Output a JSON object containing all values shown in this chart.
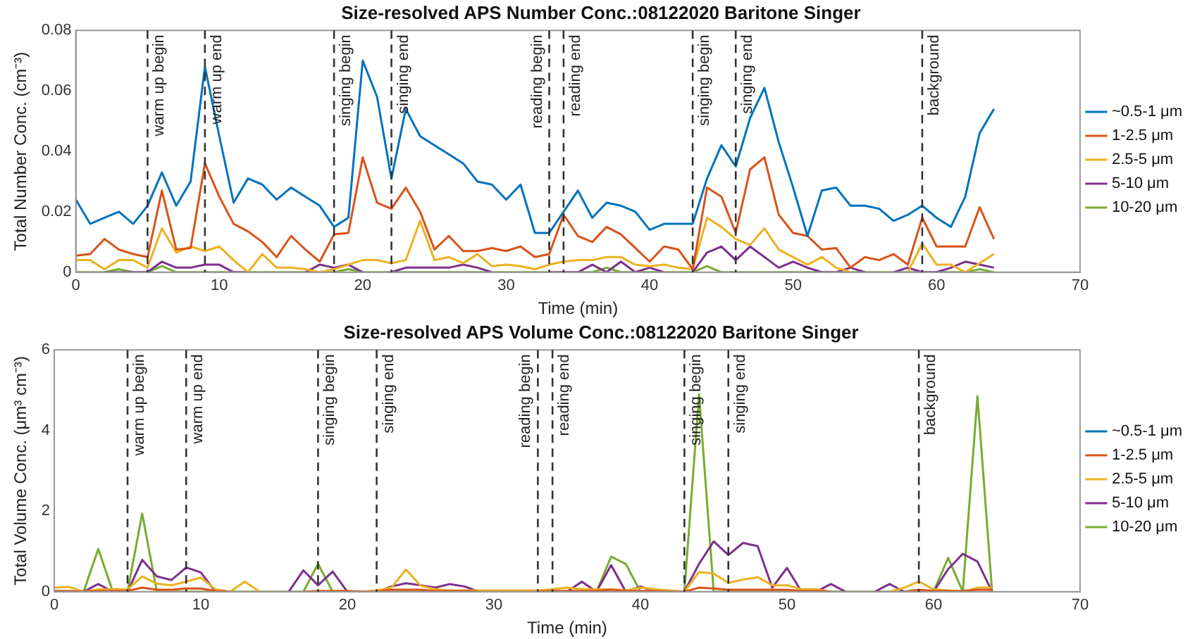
{
  "chart_data": [
    {
      "type": "line",
      "title": "Size-resolved APS Number Conc.:08122020 Baritone Singer",
      "xlabel": "Time (min)",
      "ylabel": "Total Number Conc. (cm⁻³)",
      "x": [
        0,
        1,
        2,
        3,
        4,
        5,
        6,
        7,
        8,
        9,
        10,
        11,
        12,
        13,
        14,
        15,
        16,
        17,
        18,
        19,
        20,
        21,
        22,
        23,
        24,
        25,
        26,
        27,
        28,
        29,
        30,
        31,
        32,
        33,
        34,
        35,
        36,
        37,
        38,
        39,
        40,
        41,
        42,
        43,
        44,
        45,
        46,
        47,
        48,
        49,
        50,
        51,
        52,
        53,
        54,
        55,
        56,
        57,
        58,
        59,
        60,
        61,
        62,
        63,
        64
      ],
      "xlim": [
        0,
        70
      ],
      "xticks": [
        0,
        10,
        20,
        30,
        40,
        50,
        60,
        70
      ],
      "ylim": [
        0,
        0.08
      ],
      "yticks": [
        0,
        0.02,
        0.04,
        0.06,
        0.08
      ],
      "grid": false,
      "legend": "right",
      "marker": "none",
      "line_style": "solid",
      "ref_lines": [
        {
          "axis": "x",
          "value": 5,
          "label": "warm up begin",
          "line_style": "dashed"
        },
        {
          "axis": "x",
          "value": 9,
          "label": "warm up end",
          "line_style": "dashed"
        },
        {
          "axis": "x",
          "value": 18,
          "label": "singing begin",
          "line_style": "dashed"
        },
        {
          "axis": "x",
          "value": 22,
          "label": "singing end",
          "line_style": "dashed"
        },
        {
          "axis": "x",
          "value": 33,
          "label": "reading begin",
          "line_style": "dashed"
        },
        {
          "axis": "x",
          "value": 34,
          "label": "reading end",
          "line_style": "dashed"
        },
        {
          "axis": "x",
          "value": 43,
          "label": "singing begin",
          "line_style": "dashed"
        },
        {
          "axis": "x",
          "value": 46,
          "label": "singing end",
          "line_style": "dashed"
        },
        {
          "axis": "x",
          "value": 59,
          "label": "background",
          "line_style": "dashed"
        }
      ],
      "series": [
        {
          "name": "~0.5-1 μm",
          "color": "#0072bd",
          "values": [
            0.024,
            0.016,
            0.018,
            0.02,
            0.016,
            0.022,
            0.033,
            0.022,
            0.03,
            0.068,
            0.045,
            0.023,
            0.031,
            0.029,
            0.024,
            0.028,
            0.025,
            0.022,
            0.015,
            0.018,
            0.07,
            0.058,
            0.031,
            0.054,
            0.045,
            0.042,
            0.039,
            0.036,
            0.03,
            0.029,
            0.024,
            0.029,
            0.013,
            0.013,
            0.02,
            0.027,
            0.018,
            0.023,
            0.022,
            0.02,
            0.014,
            0.016,
            0.016,
            0.016,
            0.031,
            0.042,
            0.035,
            0.051,
            0.061,
            0.043,
            0.028,
            0.012,
            0.027,
            0.028,
            0.022,
            0.022,
            0.021,
            0.017,
            0.019,
            0.022,
            0.018,
            0.015,
            0.025,
            0.046,
            0.054
          ]
        },
        {
          "name": "1-2.5 μm",
          "color": "#d95319",
          "values": [
            0.0055,
            0.006,
            0.011,
            0.0075,
            0.006,
            0.005,
            0.027,
            0.0075,
            0.008,
            0.036,
            0.025,
            0.016,
            0.0135,
            0.01,
            0.005,
            0.012,
            0.0075,
            0.0035,
            0.0125,
            0.013,
            0.038,
            0.023,
            0.021,
            0.028,
            0.02,
            0.0075,
            0.012,
            0.007,
            0.007,
            0.008,
            0.007,
            0.0085,
            0.005,
            0.006,
            0.019,
            0.012,
            0.01,
            0.015,
            0.0125,
            0.008,
            0.0035,
            0.0085,
            0.0075,
            0.001,
            0.028,
            0.025,
            0.013,
            0.034,
            0.038,
            0.019,
            0.013,
            0.012,
            0.0075,
            0.008,
            0.0015,
            0.005,
            0.004,
            0.006,
            0.0025,
            0.018,
            0.0085,
            0.0085,
            0.0085,
            0.0215,
            0.011
          ]
        },
        {
          "name": "2.5-5 μm",
          "color": "#edb120",
          "values": [
            0.004,
            0.004,
            0.001,
            0.004,
            0.004,
            0.0015,
            0.0145,
            0.0065,
            0.0085,
            0.007,
            0.0085,
            0.004,
            0,
            0.006,
            0.0015,
            0.0015,
            0.001,
            0,
            0.001,
            0.0025,
            0.004,
            0.004,
            0.003,
            0.004,
            0.017,
            0.004,
            0.005,
            0.003,
            0.006,
            0.002,
            0.0025,
            0.002,
            0.001,
            0.0025,
            0.0035,
            0.004,
            0.004,
            0.005,
            0.005,
            0.0025,
            0.002,
            0.0025,
            0.0015,
            0.001,
            0.018,
            0.015,
            0.011,
            0.009,
            0.0145,
            0.0075,
            0.005,
            0.0025,
            0.005,
            0.0015,
            0,
            null,
            null,
            null,
            0,
            0.0095,
            0.0025,
            0.0025,
            0,
            0.003,
            0.006
          ]
        },
        {
          "name": "5-10 μm",
          "color": "#7e2f8e",
          "values": [
            null,
            null,
            0,
            0,
            0,
            0,
            0.0035,
            0.0015,
            0.0015,
            0.0025,
            0.0025,
            0,
            0,
            null,
            null,
            null,
            0,
            0.0025,
            0.0015,
            0.0025,
            0,
            null,
            0,
            0.0015,
            0.0015,
            0.0015,
            0.0015,
            0.0025,
            0.0015,
            0,
            null,
            null,
            null,
            0,
            0,
            0,
            0.0025,
            0,
            0.0035,
            0,
            0.0015,
            0,
            null,
            0,
            0.0065,
            0.0085,
            0.004,
            0.0085,
            0.005,
            0.0015,
            0.0035,
            0.0015,
            0,
            0,
            0.0015,
            0,
            null,
            0,
            0.0015,
            0,
            0,
            0.0015,
            0.0035,
            0.0025,
            0.0015
          ]
        },
        {
          "name": "10-20 μm",
          "color": "#77ac30",
          "values": [
            0,
            0,
            0,
            0.001,
            0,
            0,
            0.002,
            0,
            0,
            0,
            0,
            0,
            0,
            0,
            0,
            0,
            0,
            0,
            0,
            0.001,
            0,
            0,
            0,
            0,
            0,
            0,
            0,
            0,
            0,
            0,
            0,
            0,
            0,
            0,
            0,
            0,
            0,
            0.0015,
            0,
            0,
            0,
            0,
            0,
            0,
            0.002,
            0,
            0,
            0,
            0,
            0,
            0,
            0,
            0,
            0,
            0,
            0,
            0,
            0,
            0,
            0,
            0,
            0,
            0,
            0.001,
            0
          ]
        }
      ]
    },
    {
      "type": "line",
      "title": "Size-resolved APS Volume Conc.:08122020 Baritone Singer",
      "xlabel": "Time (min)",
      "ylabel": "Total Volume Conc. (μm³ cm⁻³)",
      "x": [
        0,
        1,
        2,
        3,
        4,
        5,
        6,
        7,
        8,
        9,
        10,
        11,
        12,
        13,
        14,
        15,
        16,
        17,
        18,
        19,
        20,
        21,
        22,
        23,
        24,
        25,
        26,
        27,
        28,
        29,
        30,
        31,
        32,
        33,
        34,
        35,
        36,
        37,
        38,
        39,
        40,
        41,
        42,
        43,
        44,
        45,
        46,
        47,
        48,
        49,
        50,
        51,
        52,
        53,
        54,
        55,
        56,
        57,
        58,
        59,
        60,
        61,
        62,
        63,
        64
      ],
      "xlim": [
        0,
        70
      ],
      "xticks": [
        0,
        10,
        20,
        30,
        40,
        50,
        60,
        70
      ],
      "ylim": [
        0,
        6
      ],
      "yticks": [
        0,
        2,
        4,
        6
      ],
      "grid": false,
      "legend": "right",
      "marker": "none",
      "line_style": "solid",
      "ref_lines": [
        {
          "axis": "x",
          "value": 5,
          "label": "warm up begin",
          "line_style": "dashed"
        },
        {
          "axis": "x",
          "value": 9,
          "label": "warm up end",
          "line_style": "dashed"
        },
        {
          "axis": "x",
          "value": 18,
          "label": "singing begin",
          "line_style": "dashed"
        },
        {
          "axis": "x",
          "value": 22,
          "label": "singing end",
          "line_style": "dashed"
        },
        {
          "axis": "x",
          "value": 33,
          "label": "reading begin",
          "line_style": "dashed"
        },
        {
          "axis": "x",
          "value": 34,
          "label": "reading end",
          "line_style": "dashed"
        },
        {
          "axis": "x",
          "value": 43,
          "label": "singing begin",
          "line_style": "dashed"
        },
        {
          "axis": "x",
          "value": 46,
          "label": "singing end",
          "line_style": "dashed"
        },
        {
          "axis": "x",
          "value": 59,
          "label": "background",
          "line_style": "dashed"
        }
      ],
      "series": [
        {
          "name": "~0.5-1 μm",
          "color": "#0072bd",
          "values": [
            null,
            null,
            null,
            null,
            null,
            null,
            null,
            null,
            null,
            null,
            null,
            null,
            null,
            null,
            null,
            null,
            null,
            null,
            null,
            null,
            null,
            null,
            null,
            null,
            null,
            null,
            null,
            null,
            null,
            null,
            null,
            null,
            null,
            null,
            null,
            null,
            null,
            null,
            null,
            null,
            null,
            null,
            null,
            null,
            null,
            null,
            null,
            null,
            null,
            null,
            null,
            null,
            null,
            null,
            null,
            null,
            null,
            null,
            null,
            null,
            null,
            null,
            null,
            null,
            null
          ]
        },
        {
          "name": "1-2.5 μm",
          "color": "#d95319",
          "values": [
            0.02,
            0.02,
            0,
            0.02,
            0.02,
            0.02,
            0.1,
            0.05,
            0.05,
            0.08,
            0.08,
            0.02,
            0,
            null,
            null,
            null,
            null,
            0,
            0.02,
            0.02,
            0.02,
            0,
            0,
            0.05,
            0.05,
            0.05,
            0.02,
            0.02,
            0.02,
            0,
            null,
            null,
            null,
            0,
            0.02,
            0.02,
            0.02,
            0.02,
            0.05,
            0.02,
            0.02,
            0.02,
            0,
            0,
            0.1,
            0.08,
            0.05,
            0.05,
            0.05,
            0.05,
            0.05,
            0.02,
            0.02,
            0,
            null,
            null,
            null,
            null,
            0,
            0.05,
            0.02,
            0.02,
            0.02,
            0.05,
            0.05
          ]
        },
        {
          "name": "2.5-5 μm",
          "color": "#edb120",
          "values": [
            0.1,
            0.12,
            0,
            0.06,
            0.06,
            0.06,
            0.38,
            0.2,
            0.16,
            0.25,
            0.35,
            0.06,
            0,
            0.25,
            0,
            null,
            null,
            null,
            null,
            null,
            null,
            0,
            0.03,
            0.1,
            0.55,
            0.15,
            0.06,
            0.03,
            0.03,
            0.03,
            0.03,
            0.03,
            0.03,
            0.03,
            0.06,
            0.1,
            0.06,
            0.06,
            0.06,
            0.03,
            0.1,
            0.06,
            0.03,
            0,
            0.49,
            0.45,
            0.22,
            0.3,
            0.36,
            0.16,
            0.16,
            0.06,
            0.06,
            0,
            null,
            null,
            null,
            0,
            0.1,
            0.25,
            0.06,
            0.03,
            0,
            0.1,
            0.1
          ]
        },
        {
          "name": "5-10 μm",
          "color": "#7e2f8e",
          "values": [
            null,
            null,
            0,
            0.19,
            0,
            0,
            0.79,
            0.38,
            0.29,
            0.6,
            0.48,
            0,
            null,
            null,
            null,
            null,
            0,
            0.53,
            0.16,
            0.5,
            0,
            null,
            0,
            0.13,
            0.21,
            0.16,
            0.1,
            0.19,
            0.13,
            0,
            null,
            null,
            null,
            null,
            null,
            0,
            0.25,
            0,
            0.66,
            0,
            0.13,
            0,
            null,
            0,
            0.69,
            1.25,
            0.91,
            1.21,
            1.13,
            0.1,
            0.59,
            0,
            0,
            0.19,
            0,
            null,
            0,
            0.19,
            0,
            null,
            0,
            0.56,
            0.94,
            0.75,
            0
          ]
        },
        {
          "name": "10-20 μm",
          "color": "#77ac30",
          "values": [
            0,
            0,
            0,
            1.06,
            0,
            0,
            1.94,
            0,
            0,
            0,
            0,
            0,
            0,
            0,
            0,
            0,
            0,
            0,
            0.69,
            0,
            0,
            0,
            0,
            0,
            0,
            0,
            0,
            0,
            0,
            0,
            0,
            0,
            0,
            0,
            0,
            0,
            0,
            0,
            0.87,
            0.69,
            0,
            0,
            0,
            0,
            4.9,
            0,
            0,
            0,
            0,
            0,
            0,
            0,
            0,
            0,
            0,
            0,
            0,
            0,
            0,
            0,
            0,
            0.84,
            0,
            4.85,
            0
          ]
        }
      ]
    }
  ]
}
